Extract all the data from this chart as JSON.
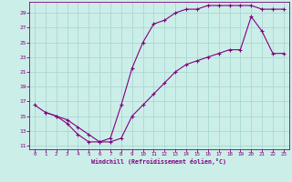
{
  "line1_x": [
    0,
    1,
    2,
    3,
    4,
    5,
    6,
    7,
    8,
    9,
    10,
    11,
    12,
    13,
    14,
    15,
    16,
    17,
    18,
    19,
    20,
    21,
    22,
    23
  ],
  "line1_y": [
    16.5,
    15.5,
    15.0,
    14.0,
    12.5,
    11.5,
    11.5,
    12.0,
    16.5,
    21.5,
    25.0,
    27.5,
    28.0,
    29.0,
    29.5,
    29.5,
    30.0,
    30.0,
    30.0,
    30.0,
    30.0,
    29.5,
    29.5,
    29.5
  ],
  "line2_x": [
    1,
    2,
    3,
    4,
    5,
    6,
    7,
    8,
    9,
    10,
    11,
    12,
    13,
    14,
    15,
    16,
    17,
    18,
    19,
    20,
    21,
    22,
    23
  ],
  "line2_y": [
    15.5,
    15.0,
    14.5,
    13.5,
    12.5,
    11.5,
    11.5,
    12.0,
    15.0,
    16.5,
    18.0,
    19.5,
    21.0,
    22.0,
    22.5,
    23.0,
    23.5,
    24.0,
    24.0,
    28.5,
    26.5,
    23.5,
    23.5
  ],
  "line_color": "#800080",
  "bg_color": "#cceee8",
  "grid_color": "#aad8d2",
  "xlabel": "Windchill (Refroidissement éolien,°C)",
  "xlim": [
    -0.5,
    23.5
  ],
  "ylim": [
    10.5,
    30.5
  ],
  "yticks": [
    11,
    13,
    15,
    17,
    19,
    21,
    23,
    25,
    27,
    29
  ],
  "xticks": [
    0,
    1,
    2,
    3,
    4,
    5,
    6,
    7,
    8,
    9,
    10,
    11,
    12,
    13,
    14,
    15,
    16,
    17,
    18,
    19,
    20,
    21,
    22,
    23
  ]
}
